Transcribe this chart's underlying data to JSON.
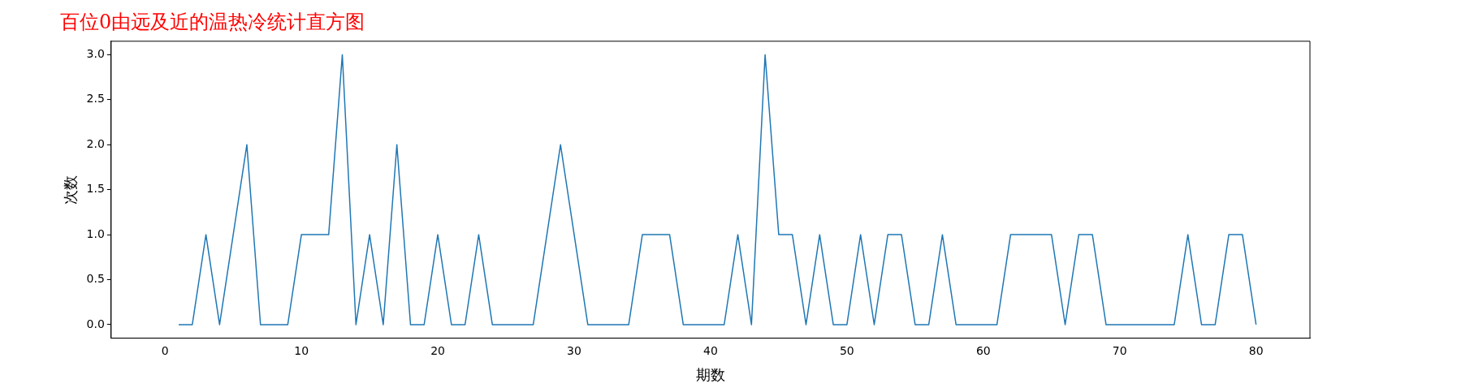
{
  "chart_data": {
    "type": "line",
    "title": "百位0由远及近的温热冷统计直方图",
    "xlabel": "期数",
    "ylabel": "次数",
    "x": [
      1,
      2,
      3,
      4,
      5,
      6,
      7,
      8,
      9,
      10,
      11,
      12,
      13,
      14,
      15,
      16,
      17,
      18,
      19,
      20,
      21,
      22,
      23,
      24,
      25,
      26,
      27,
      28,
      29,
      30,
      31,
      32,
      33,
      34,
      35,
      36,
      37,
      38,
      39,
      40,
      41,
      42,
      43,
      44,
      45,
      46,
      47,
      48,
      49,
      50,
      51,
      52,
      53,
      54,
      55,
      56,
      57,
      58,
      59,
      60,
      61,
      62,
      63,
      64,
      65,
      66,
      67,
      68,
      69,
      70,
      71,
      72,
      73,
      74,
      75,
      76,
      77,
      78,
      79,
      80
    ],
    "series": [
      {
        "color": "#1f77b4",
        "values": [
          0,
          0,
          1,
          0,
          1,
          2,
          0,
          0,
          0,
          1,
          1,
          1,
          3,
          0,
          1,
          0,
          2,
          0,
          0,
          1,
          0,
          0,
          1,
          0,
          0,
          0,
          0,
          1,
          2,
          1,
          0,
          0,
          0,
          0,
          1,
          1,
          1,
          0,
          0,
          0,
          0,
          1,
          0,
          3,
          1,
          1,
          0,
          1,
          0,
          0,
          1,
          0,
          1,
          1,
          0,
          0,
          1,
          0,
          0,
          0,
          0,
          1,
          1,
          1,
          1,
          0,
          1,
          1,
          0,
          0,
          0,
          0,
          0,
          0,
          1,
          0,
          0,
          1,
          1,
          0
        ]
      }
    ],
    "xlim": [
      -3.95,
      83.95
    ],
    "xticks": [
      0,
      10,
      20,
      30,
      40,
      50,
      60,
      70,
      80
    ],
    "ylim": [
      -0.15,
      3.15
    ],
    "yticks": [
      {
        "value": 0,
        "label": "0.0"
      },
      {
        "value": 0.5,
        "label": "0.5"
      },
      {
        "value": 1,
        "label": "1.0"
      },
      {
        "value": 1.5,
        "label": "1.5"
      },
      {
        "value": 2,
        "label": "2.0"
      },
      {
        "value": 2.5,
        "label": "2.5"
      },
      {
        "value": 3,
        "label": "3.0"
      }
    ],
    "grid": false,
    "legend": false,
    "marker": "none",
    "line_style": "solid"
  }
}
